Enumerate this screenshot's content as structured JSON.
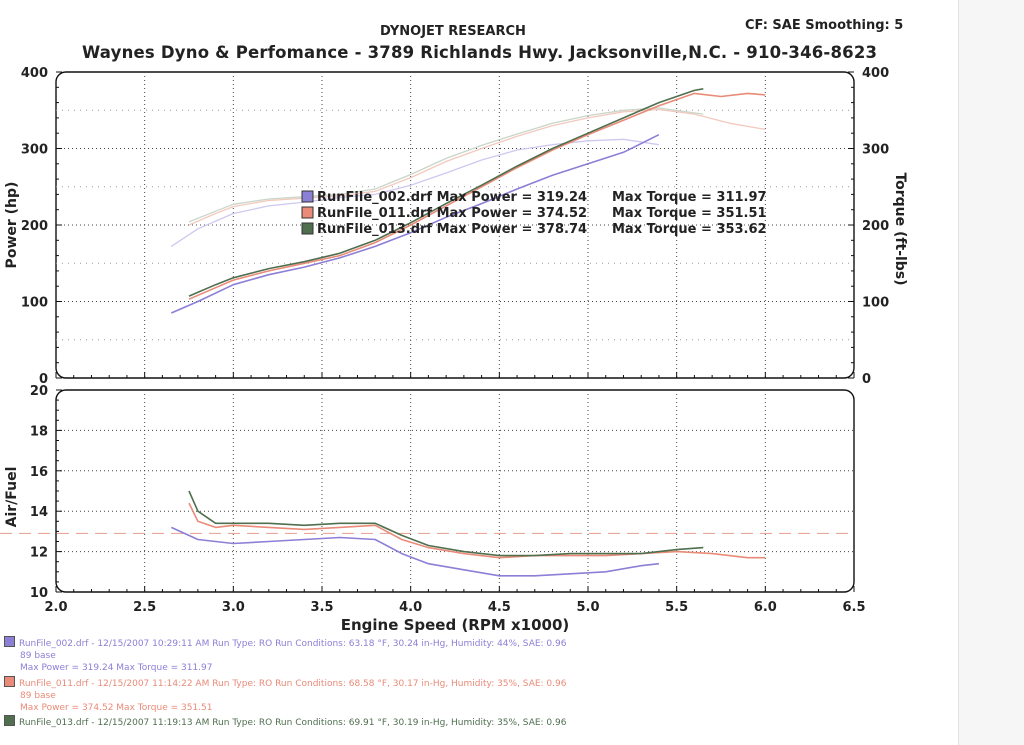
{
  "header": {
    "company": "DYNOJET RESEARCH",
    "cf": "CF: SAE  Smoothing: 5",
    "shop": "Waynes Dyno & Perfomance - 3789 Richlands Hwy. Jacksonville,N.C. - 910-346-8623"
  },
  "legend": [
    {
      "text": "RunFile_002.drf Max Power = 319.24",
      "torque": "Max Torque = 311.97",
      "color": "#8b7fd6"
    },
    {
      "text": "RunFile_011.drf Max Power = 374.52",
      "torque": "Max Torque = 351.51",
      "color": "#e98b78"
    },
    {
      "text": "RunFile_013.drf Max Power = 378.74",
      "torque": "Max Torque = 353.62",
      "color": "#4f6f4f"
    }
  ],
  "run_info": [
    {
      "line1": "RunFile_002.drf - 12/15/2007 10:29:11 AM  Run Type: RO  Run Conditions: 63.18 °F, 30.24 in-Hg,  Humidity: 44%, SAE: 0.96",
      "line2": "89 base",
      "line3": "Max Power = 319.24  Max Torque = 311.97",
      "color": "#8b7fd6"
    },
    {
      "line1": "RunFile_011.drf - 12/15/2007 11:14:22 AM  Run Type: RO  Run Conditions: 68.58 °F, 30.17 in-Hg,  Humidity: 35%, SAE: 0.96",
      "line2": "89 base",
      "line3": "Max Power = 374.52  Max Torque = 351.51",
      "color": "#e98b78"
    },
    {
      "line1": "RunFile_013.drf - 12/15/2007 11:19:13 AM  Run Type: RO  Run Conditions: 69.91 °F, 30.19 in-Hg,  Humidity: 35%, SAE: 0.96",
      "color": "#4f6f4f"
    }
  ],
  "chart_data": [
    {
      "type": "line",
      "xlabel": "",
      "ylabel": "Power (hp)",
      "y2label": "Torque (ft-lbs)",
      "xlim": [
        2.0,
        6.5
      ],
      "ylim": [
        0,
        400
      ],
      "y2lim": [
        0,
        400
      ],
      "yticks": [
        0,
        100,
        200,
        300,
        400
      ],
      "grid": true,
      "series": [
        {
          "name": "RunFile_002.drf",
          "kind": "power",
          "color": "#8b7fd6",
          "x": [
            2.65,
            2.8,
            3.0,
            3.2,
            3.4,
            3.6,
            3.8,
            4.0,
            4.2,
            4.4,
            4.6,
            4.8,
            5.0,
            5.2,
            5.4
          ],
          "y": [
            85,
            100,
            122,
            135,
            145,
            157,
            172,
            190,
            210,
            228,
            247,
            265,
            280,
            295,
            318
          ]
        },
        {
          "name": "RunFile_011.drf",
          "kind": "power",
          "color": "#e98b78",
          "x": [
            2.75,
            2.9,
            3.0,
            3.2,
            3.4,
            3.6,
            3.8,
            4.0,
            4.2,
            4.4,
            4.6,
            4.8,
            5.0,
            5.2,
            5.4,
            5.6,
            5.75,
            5.9,
            6.0
          ],
          "y": [
            103,
            118,
            128,
            140,
            150,
            160,
            177,
            200,
            225,
            250,
            275,
            298,
            318,
            337,
            356,
            372,
            368,
            372,
            370
          ]
        },
        {
          "name": "RunFile_013.drf",
          "kind": "power",
          "color": "#4f6f4f",
          "x": [
            2.75,
            2.9,
            3.0,
            3.2,
            3.4,
            3.6,
            3.8,
            4.0,
            4.2,
            4.4,
            4.6,
            4.8,
            5.0,
            5.2,
            5.4,
            5.6,
            5.65
          ],
          "y": [
            107,
            122,
            131,
            143,
            152,
            163,
            180,
            203,
            228,
            252,
            277,
            300,
            320,
            340,
            360,
            376,
            378
          ]
        },
        {
          "name": "RunFile_002.drf",
          "kind": "torque",
          "color": "#cfc8f0",
          "x": [
            2.65,
            2.8,
            3.0,
            3.2,
            3.4,
            3.6,
            3.8,
            4.0,
            4.2,
            4.4,
            4.6,
            4.8,
            5.0,
            5.2,
            5.4
          ],
          "y": [
            172,
            195,
            215,
            225,
            230,
            236,
            240,
            252,
            268,
            285,
            298,
            305,
            310,
            312,
            305
          ]
        },
        {
          "name": "RunFile_011.drf",
          "kind": "torque",
          "color": "#f3c9be",
          "x": [
            2.75,
            2.9,
            3.0,
            3.2,
            3.4,
            3.6,
            3.8,
            4.0,
            4.2,
            4.4,
            4.6,
            4.8,
            5.0,
            5.2,
            5.4,
            5.6,
            5.8,
            6.0
          ],
          "y": [
            200,
            215,
            224,
            232,
            235,
            238,
            244,
            262,
            283,
            300,
            316,
            330,
            340,
            348,
            351,
            345,
            333,
            325
          ]
        },
        {
          "name": "RunFile_013.drf",
          "kind": "torque",
          "color": "#c9d6c9",
          "x": [
            2.75,
            2.9,
            3.0,
            3.2,
            3.4,
            3.6,
            3.8,
            4.0,
            4.2,
            4.4,
            4.6,
            4.8,
            5.0,
            5.2,
            5.4,
            5.65
          ],
          "y": [
            204,
            218,
            227,
            234,
            237,
            240,
            247,
            266,
            287,
            304,
            319,
            333,
            343,
            350,
            353,
            345
          ]
        }
      ]
    },
    {
      "type": "line",
      "xlabel": "Engine Speed (RPM x1000)",
      "ylabel": "Air/Fuel",
      "xlim": [
        2.0,
        6.5
      ],
      "ylim": [
        10,
        20
      ],
      "xticks": [
        2.0,
        2.5,
        3.0,
        3.5,
        4.0,
        4.5,
        5.0,
        5.5,
        6.0,
        6.5
      ],
      "yticks": [
        10,
        12,
        14,
        16,
        18,
        20
      ],
      "reference_line": 12.9,
      "grid": true,
      "series": [
        {
          "name": "RunFile_002.drf",
          "color": "#8b7fd6",
          "x": [
            2.65,
            2.8,
            3.0,
            3.2,
            3.4,
            3.6,
            3.8,
            3.95,
            4.1,
            4.3,
            4.5,
            4.7,
            4.9,
            5.1,
            5.3,
            5.4
          ],
          "y": [
            13.2,
            12.6,
            12.4,
            12.5,
            12.6,
            12.7,
            12.6,
            11.9,
            11.4,
            11.1,
            10.8,
            10.8,
            10.9,
            11.0,
            11.3,
            11.4
          ]
        },
        {
          "name": "RunFile_011.drf",
          "color": "#e98b78",
          "x": [
            2.75,
            2.8,
            2.9,
            3.0,
            3.2,
            3.4,
            3.6,
            3.8,
            3.95,
            4.1,
            4.3,
            4.5,
            4.7,
            4.9,
            5.1,
            5.3,
            5.5,
            5.7,
            5.9,
            6.0
          ],
          "y": [
            14.4,
            13.5,
            13.2,
            13.3,
            13.2,
            13.1,
            13.2,
            13.3,
            12.6,
            12.2,
            11.9,
            11.7,
            11.8,
            11.8,
            11.8,
            11.9,
            12.0,
            11.9,
            11.7,
            11.7
          ]
        },
        {
          "name": "RunFile_013.drf",
          "color": "#4f6f4f",
          "x": [
            2.75,
            2.8,
            2.9,
            3.0,
            3.2,
            3.4,
            3.6,
            3.8,
            3.95,
            4.1,
            4.3,
            4.5,
            4.7,
            4.9,
            5.1,
            5.3,
            5.5,
            5.65
          ],
          "y": [
            15.0,
            14.0,
            13.4,
            13.4,
            13.4,
            13.3,
            13.4,
            13.4,
            12.8,
            12.3,
            12.0,
            11.8,
            11.8,
            11.9,
            11.9,
            11.9,
            12.1,
            12.2
          ]
        }
      ]
    }
  ]
}
